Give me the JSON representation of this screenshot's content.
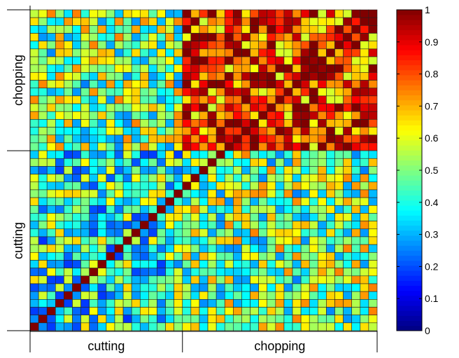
{
  "chart_data": {
    "type": "heatmap",
    "matrix_size": 41,
    "x_groups": [
      {
        "label": "cutting",
        "start": 0,
        "end": 18
      },
      {
        "label": "chopping",
        "start": 18,
        "end": 41
      }
    ],
    "y_groups": [
      {
        "label": "chopping",
        "start": 0,
        "end": 18
      },
      {
        "label": "cutting",
        "start": 18,
        "end": 41
      }
    ],
    "colorbar": {
      "colormap": "jet",
      "min": 0,
      "max": 1,
      "ticks": [
        "0",
        "0.1",
        "0.2",
        "0.3",
        "0.4",
        "0.5",
        "0.6",
        "0.7",
        "0.8",
        "0.9",
        "1"
      ]
    },
    "diagonal_value": 1.0,
    "block_means": {
      "cutting_cutting": 0.42,
      "cutting_chopping": 0.5,
      "chopping_cutting": 0.5,
      "chopping_chopping": 0.82
    },
    "grid": true
  }
}
